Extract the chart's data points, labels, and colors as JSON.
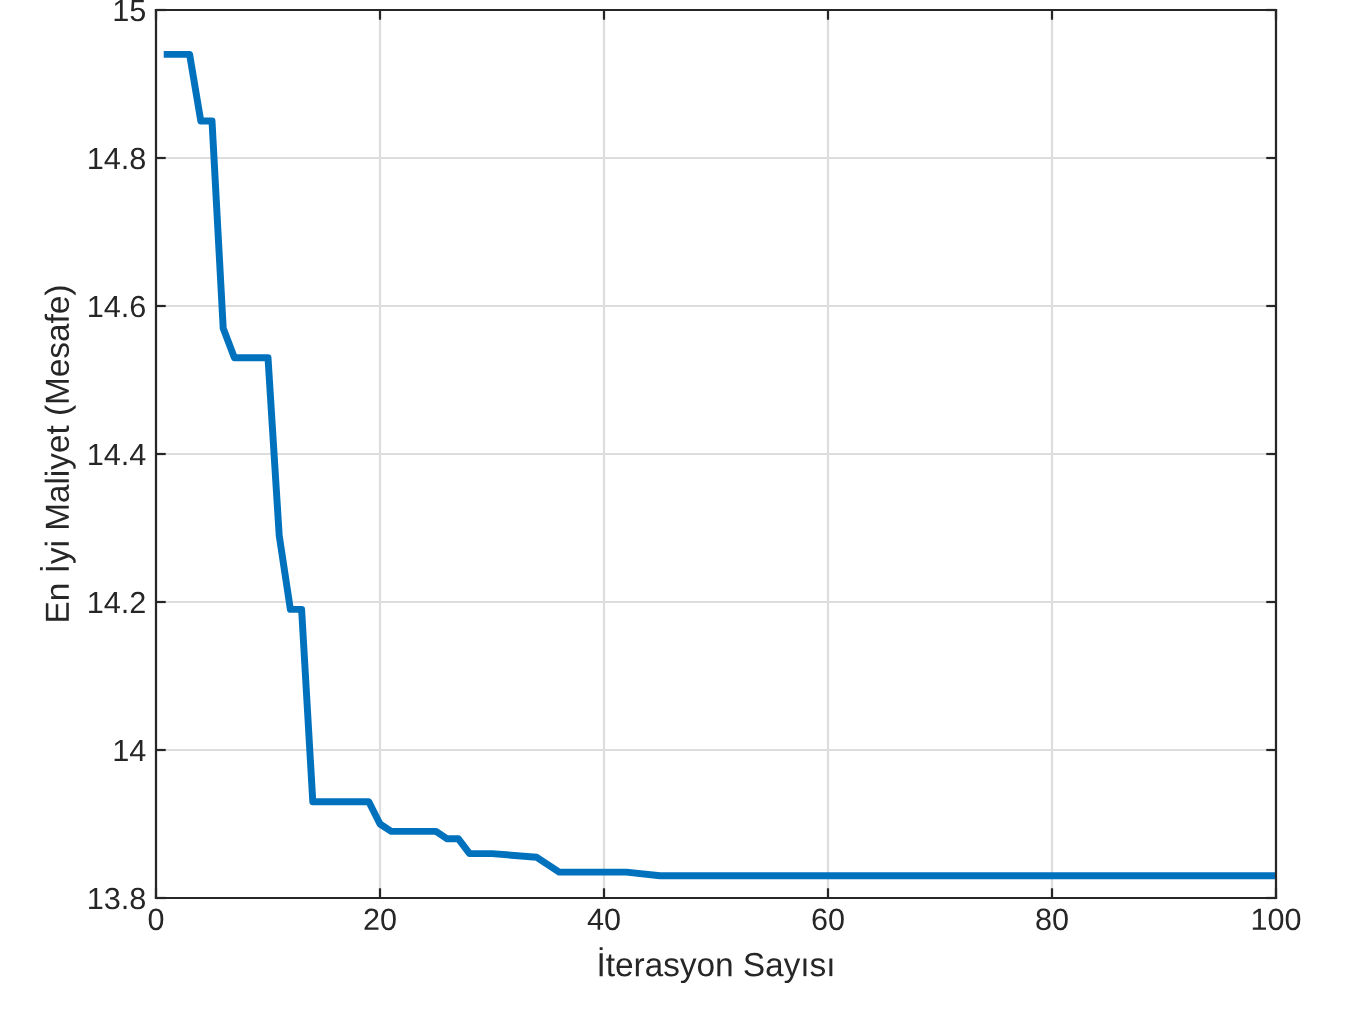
{
  "chart_data": {
    "type": "line",
    "xlabel": "İterasyon Sayısı",
    "ylabel": "En İyi Maliyet (Mesafe)",
    "x": [
      1,
      3,
      4,
      5,
      6,
      7,
      10,
      11,
      12,
      13,
      14,
      19,
      20,
      21,
      25,
      26,
      27,
      28,
      30,
      34,
      36,
      42,
      45,
      60,
      100
    ],
    "series": [
      {
        "color": "#0072bd",
        "values": [
          14.94,
          14.94,
          14.85,
          14.85,
          14.57,
          14.53,
          14.53,
          14.29,
          14.19,
          14.19,
          13.93,
          13.93,
          13.9,
          13.89,
          13.89,
          13.88,
          13.88,
          13.86,
          13.86,
          13.855,
          13.835,
          13.835,
          13.83,
          13.83,
          13.83
        ]
      }
    ],
    "xlim": [
      0,
      100
    ],
    "ylim": [
      13.8,
      15
    ],
    "xticks": [
      0,
      20,
      40,
      60,
      80,
      100
    ],
    "yticks": [
      13.8,
      {
        "value": 14,
        "label": "14"
      },
      14.2,
      14.4,
      14.6,
      14.8,
      {
        "value": 15,
        "label": "15"
      }
    ],
    "grid": true
  }
}
